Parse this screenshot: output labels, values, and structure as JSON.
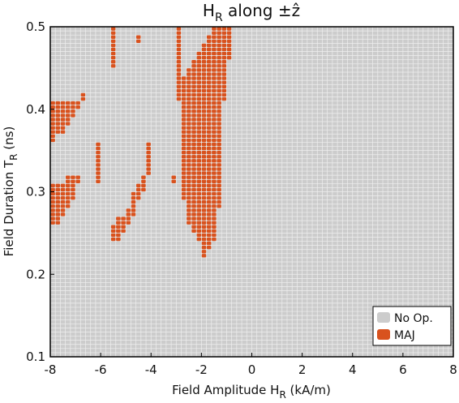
{
  "chart_data": {
    "type": "heatmap",
    "title": "H",
    "title_subscript": "R",
    "title_suffix": " along ±ẑ",
    "xlabel": "Field Amplitude H",
    "xlabel_subscript": "R",
    "xlabel_suffix": " (kA/m)",
    "ylabel": "Field Duration T",
    "ylabel_subscript": "R",
    "ylabel_suffix": " (ns)",
    "xlim": [
      -8,
      8
    ],
    "ylim": [
      0.1,
      0.5
    ],
    "x_ticks": [
      "-8",
      "-6",
      "-4",
      "-2",
      "0",
      "2",
      "4",
      "6",
      "8"
    ],
    "y_ticks": [
      "0.1",
      "0.2",
      "0.3",
      "0.4",
      "0.5"
    ],
    "grid_step_x": 0.2,
    "grid_step_y": 0.005,
    "colors": {
      "No Op.": "#cccccc",
      "MAJ": "#d8521e",
      "grid_line": "#efefef"
    },
    "legend": {
      "placement": "bottom-right",
      "entries": [
        "No Op.",
        "MAJ"
      ]
    },
    "maj_regions": [
      {
        "x": [
          -8.0,
          -7.8
        ],
        "y": [
          0.36,
          0.41
        ]
      },
      {
        "x": [
          -7.8,
          -7.4
        ],
        "y": [
          0.37,
          0.41
        ]
      },
      {
        "x": [
          -7.4,
          -7.2
        ],
        "y": [
          0.38,
          0.41
        ]
      },
      {
        "x": [
          -7.2,
          -7.0
        ],
        "y": [
          0.39,
          0.41
        ]
      },
      {
        "x": [
          -7.0,
          -6.8
        ],
        "y": [
          0.4,
          0.41
        ]
      },
      {
        "x": [
          -6.8,
          -6.6
        ],
        "y": [
          0.41,
          0.42
        ]
      },
      {
        "x": [
          -8.0,
          -7.6
        ],
        "y": [
          0.26,
          0.31
        ]
      },
      {
        "x": [
          -7.6,
          -7.4
        ],
        "y": [
          0.27,
          0.31
        ]
      },
      {
        "x": [
          -7.4,
          -7.2
        ],
        "y": [
          0.28,
          0.32
        ]
      },
      {
        "x": [
          -7.2,
          -7.0
        ],
        "y": [
          0.29,
          0.32
        ]
      },
      {
        "x": [
          -7.0,
          -6.8
        ],
        "y": [
          0.31,
          0.32
        ]
      },
      {
        "x": [
          -6.2,
          -6.0
        ],
        "y": [
          0.31,
          0.36
        ]
      },
      {
        "x": [
          -5.6,
          -5.4
        ],
        "y": [
          0.45,
          0.5
        ]
      },
      {
        "x": [
          -5.6,
          -5.4
        ],
        "y": [
          0.24,
          0.26
        ]
      },
      {
        "x": [
          -5.4,
          -5.2
        ],
        "y": [
          0.24,
          0.27
        ]
      },
      {
        "x": [
          -5.2,
          -5.0
        ],
        "y": [
          0.25,
          0.27
        ]
      },
      {
        "x": [
          -5.0,
          -4.8
        ],
        "y": [
          0.26,
          0.28
        ]
      },
      {
        "x": [
          -4.8,
          -4.6
        ],
        "y": [
          0.27,
          0.3
        ]
      },
      {
        "x": [
          -4.6,
          -4.4
        ],
        "y": [
          0.29,
          0.31
        ]
      },
      {
        "x": [
          -4.4,
          -4.2
        ],
        "y": [
          0.3,
          0.32
        ]
      },
      {
        "x": [
          -4.2,
          -4.0
        ],
        "y": [
          0.32,
          0.36
        ]
      },
      {
        "x": [
          -4.6,
          -4.4
        ],
        "y": [
          0.48,
          0.49
        ]
      },
      {
        "x": [
          -3.2,
          -3.0
        ],
        "y": [
          0.31,
          0.32
        ]
      },
      {
        "x": [
          -3.0,
          -2.8
        ],
        "y": [
          0.41,
          0.5
        ]
      },
      {
        "x": [
          -2.8,
          -2.6
        ],
        "y": [
          0.29,
          0.44
        ]
      },
      {
        "x": [
          -2.6,
          -2.4
        ],
        "y": [
          0.26,
          0.45
        ]
      },
      {
        "x": [
          -2.4,
          -2.2
        ],
        "y": [
          0.25,
          0.46
        ]
      },
      {
        "x": [
          -2.2,
          -2.0
        ],
        "y": [
          0.24,
          0.47
        ]
      },
      {
        "x": [
          -2.0,
          -1.8
        ],
        "y": [
          0.22,
          0.48
        ]
      },
      {
        "x": [
          -1.8,
          -1.6
        ],
        "y": [
          0.23,
          0.49
        ]
      },
      {
        "x": [
          -1.6,
          -1.4
        ],
        "y": [
          0.24,
          0.5
        ]
      },
      {
        "x": [
          -1.4,
          -1.2
        ],
        "y": [
          0.28,
          0.5
        ]
      },
      {
        "x": [
          -1.2,
          -1.0
        ],
        "y": [
          0.41,
          0.5
        ]
      },
      {
        "x": [
          -1.0,
          -0.8
        ],
        "y": [
          0.46,
          0.5
        ]
      }
    ]
  }
}
